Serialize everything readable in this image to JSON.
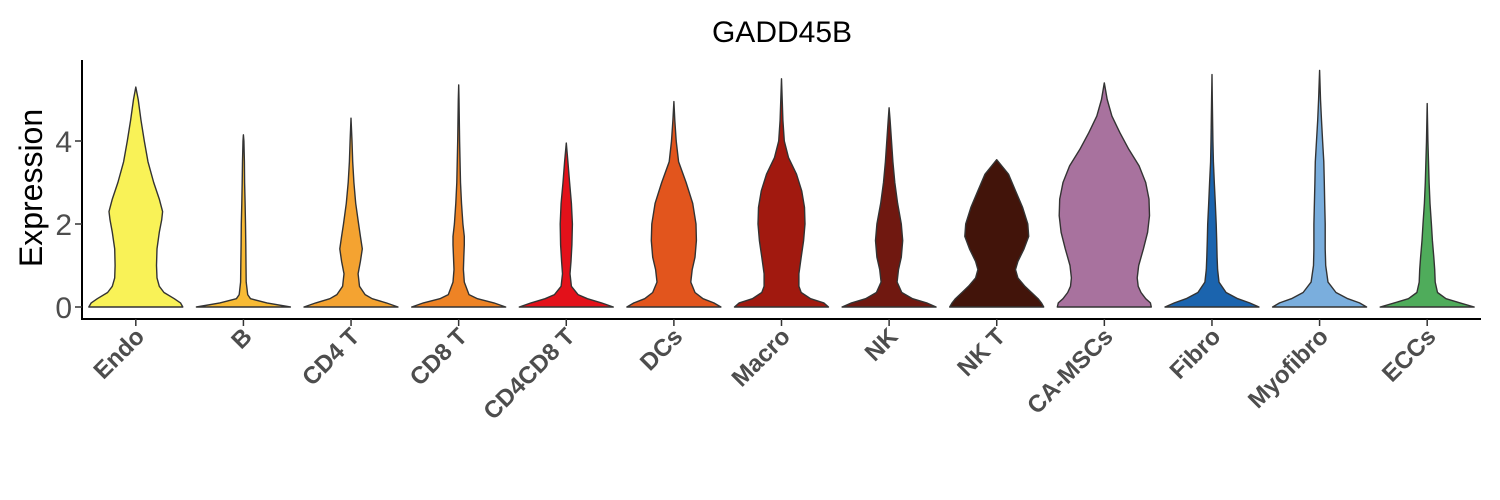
{
  "chart_data": {
    "type": "violin",
    "title": "GADD45B",
    "xlabel": "",
    "ylabel": "Expression",
    "ylim": [
      -0.3,
      5.8
    ],
    "yticks": [
      0,
      2,
      4
    ],
    "categories": [
      "Endo",
      "B",
      "CD4 T",
      "CD8 T",
      "CD4CD8 T",
      "DCs",
      "Macro",
      "NK",
      "NK T",
      "CA-MSCs",
      "Fibro",
      "Myofibro",
      "ECCs"
    ],
    "colors": [
      "#F9F257",
      "#F8BB35",
      "#F4A331",
      "#EE8325",
      "#E3111A",
      "#E2551D",
      "#A1190F",
      "#701810",
      "#42140A",
      "#A8729E",
      "#1B64AE",
      "#7AAEDD",
      "#4FAC5B"
    ],
    "y_max": [
      5.3,
      4.15,
      4.55,
      5.35,
      3.95,
      4.95,
      5.5,
      4.8,
      3.55,
      5.4,
      5.6,
      5.7,
      4.9
    ],
    "density_profiles": [
      [
        [
          0.0,
          1.0
        ],
        [
          0.1,
          0.95
        ],
        [
          0.2,
          0.82
        ],
        [
          0.35,
          0.6
        ],
        [
          0.5,
          0.5
        ],
        [
          0.7,
          0.45
        ],
        [
          1.0,
          0.44
        ],
        [
          1.4,
          0.45
        ],
        [
          1.8,
          0.5
        ],
        [
          2.1,
          0.55
        ],
        [
          2.3,
          0.57
        ],
        [
          2.6,
          0.5
        ],
        [
          3.0,
          0.38
        ],
        [
          3.5,
          0.26
        ],
        [
          4.0,
          0.18
        ],
        [
          4.5,
          0.11
        ],
        [
          5.0,
          0.05
        ],
        [
          5.3,
          0.0
        ]
      ],
      [
        [
          0.0,
          1.0
        ],
        [
          0.1,
          0.5
        ],
        [
          0.2,
          0.15
        ],
        [
          0.3,
          0.09
        ],
        [
          0.6,
          0.06
        ],
        [
          1.0,
          0.055
        ],
        [
          1.5,
          0.05
        ],
        [
          2.0,
          0.045
        ],
        [
          2.5,
          0.035
        ],
        [
          3.0,
          0.025
        ],
        [
          3.5,
          0.02
        ],
        [
          4.0,
          0.01
        ],
        [
          4.15,
          0.0
        ]
      ],
      [
        [
          0.0,
          1.0
        ],
        [
          0.1,
          0.75
        ],
        [
          0.2,
          0.45
        ],
        [
          0.3,
          0.3
        ],
        [
          0.5,
          0.18
        ],
        [
          0.8,
          0.15
        ],
        [
          1.1,
          0.2
        ],
        [
          1.4,
          0.24
        ],
        [
          1.7,
          0.2
        ],
        [
          2.0,
          0.16
        ],
        [
          2.5,
          0.1
        ],
        [
          3.0,
          0.06
        ],
        [
          3.5,
          0.035
        ],
        [
          4.0,
          0.02
        ],
        [
          4.55,
          0.0
        ]
      ],
      [
        [
          0.0,
          1.0
        ],
        [
          0.1,
          0.75
        ],
        [
          0.2,
          0.4
        ],
        [
          0.3,
          0.22
        ],
        [
          0.6,
          0.12
        ],
        [
          0.9,
          0.1
        ],
        [
          1.2,
          0.11
        ],
        [
          1.5,
          0.12
        ],
        [
          1.7,
          0.12
        ],
        [
          2.0,
          0.09
        ],
        [
          2.5,
          0.06
        ],
        [
          3.0,
          0.04
        ],
        [
          4.0,
          0.02
        ],
        [
          5.0,
          0.008
        ],
        [
          5.35,
          0.0
        ]
      ],
      [
        [
          0.0,
          1.0
        ],
        [
          0.1,
          0.75
        ],
        [
          0.2,
          0.45
        ],
        [
          0.3,
          0.25
        ],
        [
          0.5,
          0.11
        ],
        [
          0.8,
          0.08
        ],
        [
          1.1,
          0.1
        ],
        [
          1.5,
          0.12
        ],
        [
          2.0,
          0.13
        ],
        [
          2.5,
          0.11
        ],
        [
          3.0,
          0.07
        ],
        [
          3.5,
          0.035
        ],
        [
          3.95,
          0.0
        ]
      ],
      [
        [
          0.0,
          1.0
        ],
        [
          0.1,
          0.85
        ],
        [
          0.2,
          0.62
        ],
        [
          0.35,
          0.45
        ],
        [
          0.6,
          0.36
        ],
        [
          0.9,
          0.39
        ],
        [
          1.2,
          0.45
        ],
        [
          1.6,
          0.48
        ],
        [
          2.0,
          0.47
        ],
        [
          2.5,
          0.4
        ],
        [
          3.0,
          0.26
        ],
        [
          3.5,
          0.1
        ],
        [
          4.0,
          0.05
        ],
        [
          4.5,
          0.02
        ],
        [
          4.95,
          0.0
        ]
      ],
      [
        [
          0.0,
          1.0
        ],
        [
          0.1,
          0.9
        ],
        [
          0.2,
          0.62
        ],
        [
          0.35,
          0.42
        ],
        [
          0.5,
          0.37
        ],
        [
          0.8,
          0.37
        ],
        [
          1.2,
          0.42
        ],
        [
          1.6,
          0.47
        ],
        [
          2.0,
          0.5
        ],
        [
          2.4,
          0.49
        ],
        [
          2.8,
          0.43
        ],
        [
          3.2,
          0.32
        ],
        [
          3.6,
          0.15
        ],
        [
          4.0,
          0.06
        ],
        [
          4.5,
          0.03
        ],
        [
          5.0,
          0.015
        ],
        [
          5.5,
          0.0
        ]
      ],
      [
        [
          0.0,
          1.0
        ],
        [
          0.1,
          0.8
        ],
        [
          0.2,
          0.5
        ],
        [
          0.35,
          0.27
        ],
        [
          0.6,
          0.17
        ],
        [
          0.9,
          0.2
        ],
        [
          1.2,
          0.26
        ],
        [
          1.6,
          0.29
        ],
        [
          2.0,
          0.26
        ],
        [
          2.5,
          0.18
        ],
        [
          3.0,
          0.12
        ],
        [
          3.5,
          0.08
        ],
        [
          4.0,
          0.05
        ],
        [
          4.5,
          0.02
        ],
        [
          4.8,
          0.0
        ]
      ],
      [
        [
          0.0,
          1.0
        ],
        [
          0.1,
          0.95
        ],
        [
          0.2,
          0.88
        ],
        [
          0.35,
          0.74
        ],
        [
          0.5,
          0.6
        ],
        [
          0.7,
          0.45
        ],
        [
          0.9,
          0.4
        ],
        [
          1.1,
          0.45
        ],
        [
          1.4,
          0.58
        ],
        [
          1.7,
          0.68
        ],
        [
          2.0,
          0.66
        ],
        [
          2.4,
          0.55
        ],
        [
          2.8,
          0.4
        ],
        [
          3.2,
          0.25
        ],
        [
          3.55,
          0.0
        ]
      ],
      [
        [
          0.0,
          1.0
        ],
        [
          0.1,
          0.98
        ],
        [
          0.2,
          0.88
        ],
        [
          0.35,
          0.78
        ],
        [
          0.5,
          0.72
        ],
        [
          0.7,
          0.7
        ],
        [
          1.0,
          0.73
        ],
        [
          1.4,
          0.83
        ],
        [
          1.8,
          0.92
        ],
        [
          2.2,
          0.96
        ],
        [
          2.6,
          0.95
        ],
        [
          3.0,
          0.88
        ],
        [
          3.4,
          0.74
        ],
        [
          3.8,
          0.52
        ],
        [
          4.2,
          0.33
        ],
        [
          4.6,
          0.16
        ],
        [
          5.0,
          0.06
        ],
        [
          5.4,
          0.0
        ]
      ],
      [
        [
          0.0,
          1.0
        ],
        [
          0.1,
          0.8
        ],
        [
          0.2,
          0.55
        ],
        [
          0.35,
          0.3
        ],
        [
          0.6,
          0.15
        ],
        [
          0.9,
          0.12
        ],
        [
          1.2,
          0.11
        ],
        [
          1.6,
          0.1
        ],
        [
          2.0,
          0.09
        ],
        [
          2.5,
          0.07
        ],
        [
          3.0,
          0.05
        ],
        [
          3.5,
          0.03
        ],
        [
          4.0,
          0.02
        ],
        [
          5.0,
          0.008
        ],
        [
          5.6,
          0.0
        ]
      ],
      [
        [
          0.0,
          1.0
        ],
        [
          0.1,
          0.85
        ],
        [
          0.2,
          0.6
        ],
        [
          0.35,
          0.35
        ],
        [
          0.6,
          0.18
        ],
        [
          1.0,
          0.13
        ],
        [
          1.4,
          0.12
        ],
        [
          2.0,
          0.12
        ],
        [
          2.5,
          0.11
        ],
        [
          3.0,
          0.1
        ],
        [
          3.5,
          0.09
        ],
        [
          4.0,
          0.065
        ],
        [
          4.5,
          0.04
        ],
        [
          5.0,
          0.02
        ],
        [
          5.7,
          0.0
        ]
      ],
      [
        [
          0.0,
          1.0
        ],
        [
          0.1,
          0.7
        ],
        [
          0.2,
          0.4
        ],
        [
          0.35,
          0.22
        ],
        [
          0.6,
          0.17
        ],
        [
          0.9,
          0.16
        ],
        [
          1.2,
          0.14
        ],
        [
          1.6,
          0.11
        ],
        [
          2.0,
          0.09
        ],
        [
          2.5,
          0.06
        ],
        [
          3.0,
          0.04
        ],
        [
          4.0,
          0.015
        ],
        [
          4.9,
          0.0
        ]
      ]
    ]
  }
}
